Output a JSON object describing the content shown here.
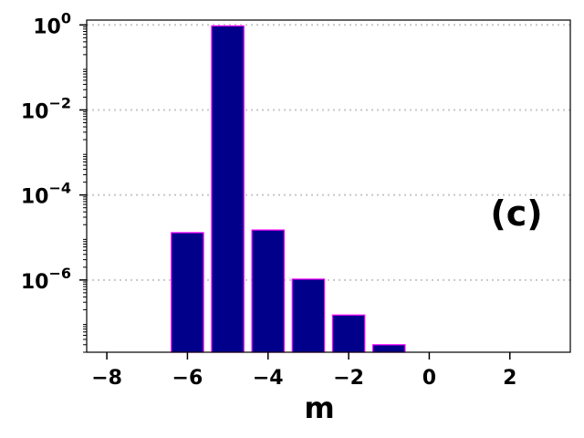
{
  "chart_data": {
    "type": "bar",
    "x": [
      -6,
      -5,
      -4,
      -3,
      -2,
      -1
    ],
    "values": [
      1.3e-05,
      0.95,
      1.5e-05,
      1.05e-06,
      1.5e-07,
      3e-08
    ],
    "xlabel": "m",
    "ylabel": "",
    "xlim": [
      -8.5,
      3.5
    ],
    "ylim": [
      2e-08,
      1.3
    ],
    "yscale": "log",
    "xticks": [
      -8,
      -6,
      -4,
      -2,
      0,
      2
    ],
    "xtick_labels": [
      "−8",
      "−6",
      "−4",
      "−2",
      "0",
      "2"
    ],
    "yticks": [
      {
        "value": 1,
        "base": "10",
        "exp": "0"
      },
      {
        "value": 0.01,
        "base": "10",
        "exp": "−2"
      },
      {
        "value": 0.0001,
        "base": "10",
        "exp": "−4"
      },
      {
        "value": 1e-06,
        "base": "10",
        "exp": "−6"
      }
    ],
    "grid": "horizontal dotted",
    "annotation": "(c)",
    "bar_color": "#00008b",
    "edge_color": "#ff00ff"
  }
}
